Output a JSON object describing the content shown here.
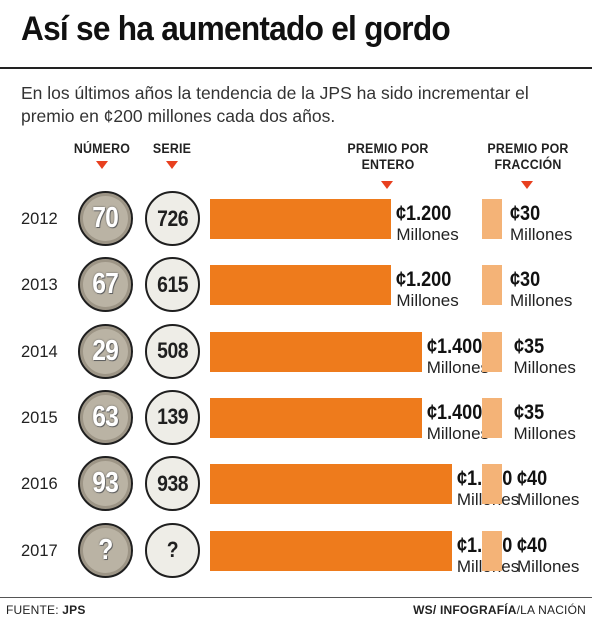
{
  "header": {
    "title": "Así se ha aumentado el gordo",
    "subtitle": "En los últimos años la tendencia de la JPS ha sido incrementar el premio en ¢200 millones cada dos años."
  },
  "columns": {
    "numero": "NÚMERO",
    "serie": "SERIE",
    "premio_entero": [
      "PREMIO POR",
      "ENTERO"
    ],
    "premio_fraccion": [
      "PREMIO POR",
      "FRACCIÓN"
    ]
  },
  "unit_label": "Millones",
  "colors": {
    "entero_bar": "#ee7b1c",
    "fraccion_bar": "#f4b377",
    "indicator": "#e8401f",
    "number_ball": "#bab3a4",
    "series_ball": "#eeede7"
  },
  "chart_data": {
    "type": "bar",
    "title": "Así se ha aumentado el gordo",
    "orientation": "horizontal",
    "categories": [
      "2012",
      "2013",
      "2014",
      "2015",
      "2016",
      "2017"
    ],
    "series": [
      {
        "name": "PREMIO POR ENTERO",
        "values": [
          1200,
          1200,
          1400,
          1400,
          1600,
          1600
        ],
        "labels": [
          "¢1.200",
          "¢1.200",
          "¢1.400",
          "¢1.400",
          "¢1.600",
          "¢1.600"
        ]
      },
      {
        "name": "PREMIO POR FRACCIÓN",
        "values": [
          30,
          30,
          35,
          35,
          40,
          40
        ],
        "labels": [
          "¢30",
          "¢30",
          "¢35",
          "¢35",
          "¢40",
          "¢40"
        ]
      }
    ],
    "numero": [
      "70",
      "67",
      "29",
      "63",
      "93",
      "?"
    ],
    "serie": [
      "726",
      "615",
      "508",
      "139",
      "938",
      "?"
    ]
  },
  "footer": {
    "source_label": "FUENTE:",
    "source_value": "JPS",
    "credit_initials": "WS/",
    "credit_dept": "INFOGRAFÍA",
    "credit_pub": "/LA NACIÓN"
  }
}
